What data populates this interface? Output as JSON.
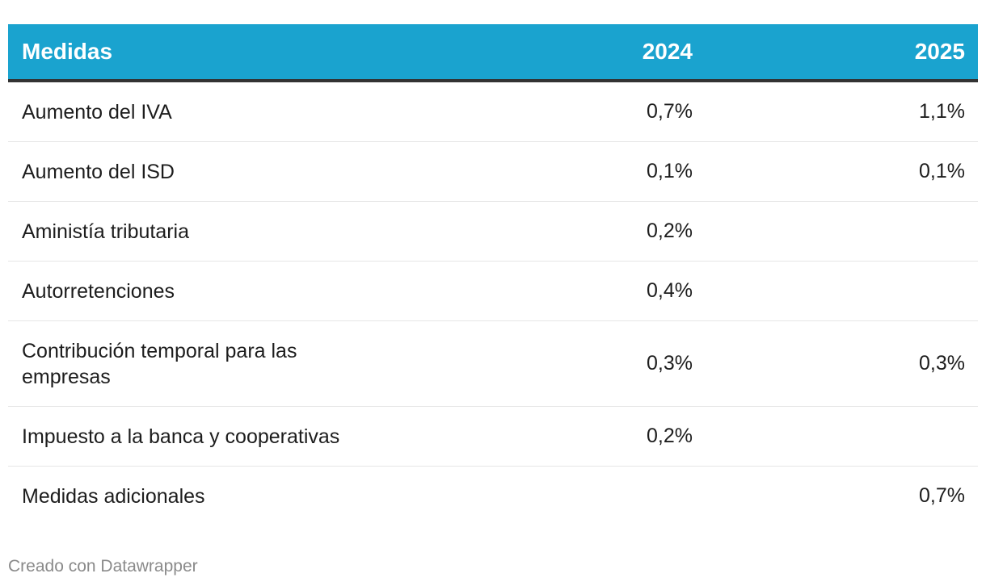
{
  "chart_data": {
    "type": "table",
    "columns": [
      "Medidas",
      "2024",
      "2025"
    ],
    "rows": [
      {
        "label": "Aumento del IVA",
        "v2024": "0,7%",
        "v2025": "1,1%"
      },
      {
        "label": "Aumento del ISD",
        "v2024": "0,1%",
        "v2025": "0,1%"
      },
      {
        "label": "Aministía tributaria",
        "v2024": "0,2%",
        "v2025": ""
      },
      {
        "label": "Autorretenciones",
        "v2024": "0,4%",
        "v2025": ""
      },
      {
        "label": "Contribución temporal para las empresas",
        "v2024": "0,3%",
        "v2025": "0,3%"
      },
      {
        "label": "Impuesto a la banca y cooperativas",
        "v2024": "0,2%",
        "v2025": ""
      },
      {
        "label": "Medidas adicionales",
        "v2024": "",
        "v2025": "0,7%"
      }
    ]
  },
  "footer": {
    "credit": "Creado con Datawrapper"
  },
  "colors": {
    "header_bg": "#1aa3cf",
    "header_text": "#ffffff",
    "header_rule": "#333333",
    "row_divider": "#e6e6e6",
    "body_text": "#1d1d1d",
    "credit_text": "#8a8a8a"
  }
}
